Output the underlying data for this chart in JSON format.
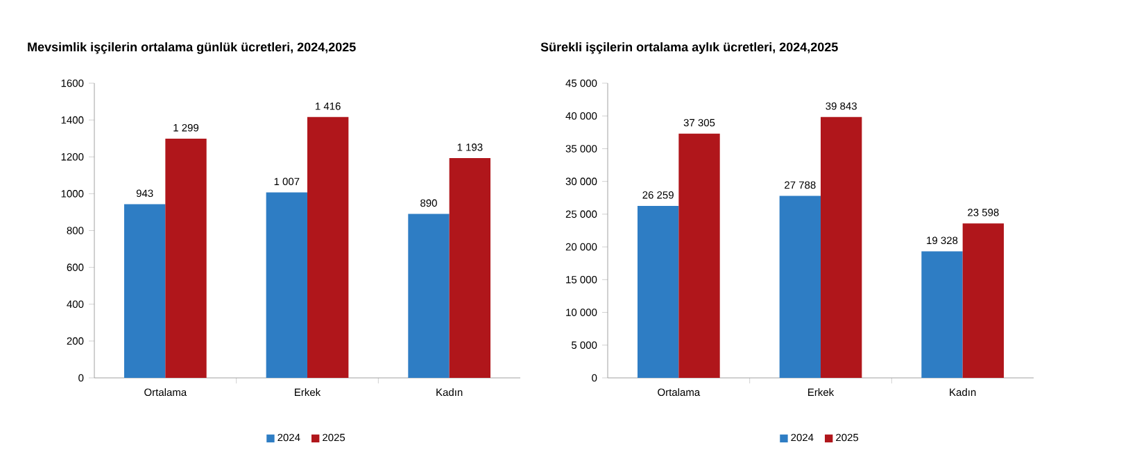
{
  "chart_data": [
    {
      "type": "bar",
      "title": "Mevsimlik işçilerin ortalama günlük ücretleri, 2024,2025",
      "categories": [
        "Ortalama",
        "Erkek",
        "Kadın"
      ],
      "series": [
        {
          "name": "2024",
          "color": "#2e7dc4",
          "values": [
            943,
            1007,
            890
          ],
          "value_labels": [
            "943",
            "1 007",
            "890"
          ]
        },
        {
          "name": "2025",
          "color": "#b0161b",
          "values": [
            1299,
            1416,
            1193
          ],
          "value_labels": [
            "1 299",
            "1 416",
            "1 193"
          ]
        }
      ],
      "ylim": [
        0,
        1600
      ],
      "yticks": [
        0,
        200,
        400,
        600,
        800,
        1000,
        1200,
        1400,
        1600
      ],
      "grid": false,
      "legend": "bottom"
    },
    {
      "type": "bar",
      "title": "Sürekli işçilerin ortalama aylık ücretleri, 2024,2025",
      "categories": [
        "Ortalama",
        "Erkek",
        "Kadın"
      ],
      "series": [
        {
          "name": "2024",
          "color": "#2e7dc4",
          "values": [
            26259,
            27788,
            19328
          ],
          "value_labels": [
            "26 259",
            "27 788",
            "19 328"
          ]
        },
        {
          "name": "2025",
          "color": "#b0161b",
          "values": [
            37305,
            39843,
            23598
          ],
          "value_labels": [
            "37 305",
            "39 843",
            "23 598"
          ]
        }
      ],
      "ylim": [
        0,
        45000
      ],
      "yticks": [
        0,
        {
          "value": 5000,
          "label": "5 000"
        },
        {
          "value": 10000,
          "label": "10 000"
        },
        {
          "value": 15000,
          "label": "15 000"
        },
        {
          "value": 20000,
          "label": "20 000"
        },
        {
          "value": 25000,
          "label": "25 000"
        },
        {
          "value": 30000,
          "label": "30 000"
        },
        {
          "value": 35000,
          "label": "35 000"
        },
        {
          "value": 40000,
          "label": "40 000"
        },
        {
          "value": 45000,
          "label": "45 000"
        }
      ],
      "grid": false,
      "legend": "bottom"
    }
  ]
}
